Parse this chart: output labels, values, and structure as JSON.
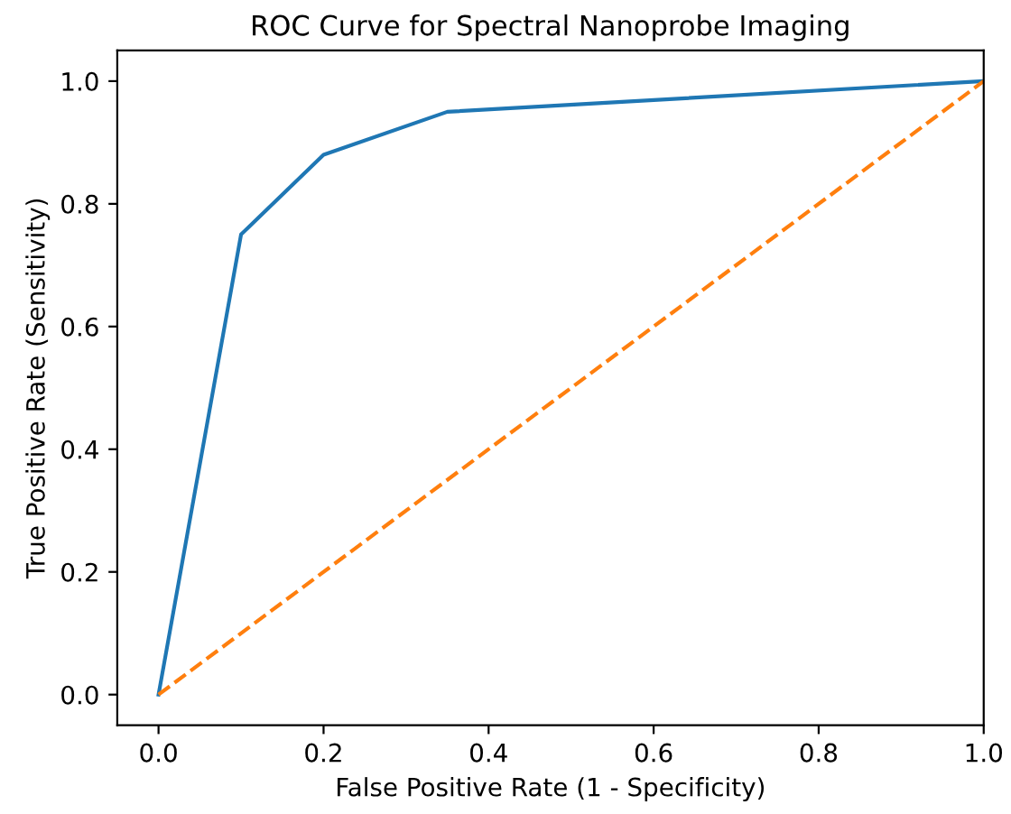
{
  "chart_data": {
    "type": "line",
    "title": "ROC Curve for Spectral Nanoprobe Imaging",
    "xlabel": "False Positive Rate (1 - Specificity)",
    "ylabel": "True Positive Rate (Sensitivity)",
    "series": [
      {
        "color": "#1f77b4",
        "x": [
          0,
          0.1,
          0.2,
          0.35,
          1.0
        ],
        "values": [
          0,
          0.75,
          0.88,
          0.95,
          1.0
        ],
        "line_style": "solid"
      },
      {
        "color": "#ff7f0e",
        "x": [
          0,
          1.0
        ],
        "values": [
          0,
          1.0
        ],
        "line_style": "dashed"
      }
    ],
    "xlim": [
      -0.05,
      1.0
    ],
    "ylim": [
      -0.05,
      1.05
    ],
    "xticks": [
      {
        "value": 0,
        "label": "0.0"
      },
      0.2,
      0.4,
      0.6,
      0.8,
      {
        "value": 1,
        "label": "1.0"
      }
    ],
    "yticks": [
      {
        "value": 0,
        "label": "0.0"
      },
      0.2,
      0.4,
      0.6,
      0.8,
      {
        "value": 1,
        "label": "1.0"
      }
    ],
    "grid": false,
    "legend": false,
    "marker": "none"
  }
}
